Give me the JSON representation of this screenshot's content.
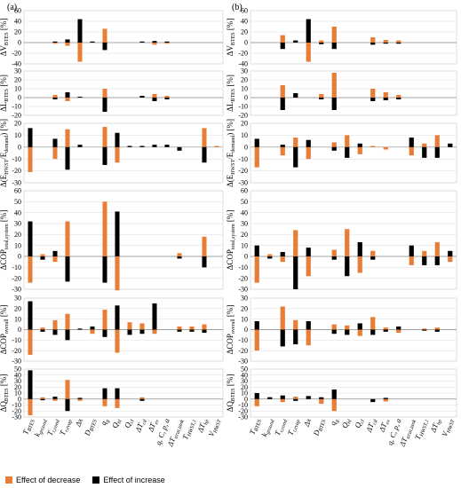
{
  "panel_labels": [
    "(a)",
    "(b)"
  ],
  "colors": {
    "decrease": "#E87D36",
    "increase": "#000000"
  },
  "legend": {
    "decrease": "Effect of decrease",
    "increase": "Effect of increase"
  },
  "chart_data": {
    "type": "bar",
    "categories": [
      "T_BTES",
      "k_ground",
      "T_r,cond",
      "T_r,evap",
      "Δx",
      "D_BTES",
      "q_g",
      "Q_hl",
      "Q_cl",
      "ΔT_cd",
      "ΔT_ev",
      "q, C, p, a",
      "ΔT_strat,tank",
      "T_HWST,1",
      "ΔT_hp",
      "V_HWST"
    ],
    "category_labels": [
      {
        "base": "T",
        "sub": "BTES"
      },
      {
        "base": "k",
        "sub": "ground"
      },
      {
        "base": "T",
        "sub": "r,cond"
      },
      {
        "base": "T",
        "sub": "r,evap"
      },
      {
        "base": "Δx",
        "sub": ""
      },
      {
        "base": "D",
        "sub": "BTES"
      },
      {
        "base": "q",
        "sub": "g"
      },
      {
        "base": "Q",
        "sub": "hl"
      },
      {
        "base": "Q",
        "sub": "cl"
      },
      {
        "base": "ΔT",
        "sub": "cd"
      },
      {
        "base": "ΔT",
        "sub": "ev"
      },
      {
        "base": "q, C, p, a",
        "sub": ""
      },
      {
        "base": "ΔT",
        "sub": "strat,tank"
      },
      {
        "base": "T",
        "sub": "HWST,1"
      },
      {
        "base": "ΔT",
        "sub": "hp"
      },
      {
        "base": "V",
        "sub": "HWST"
      }
    ],
    "series_names": [
      "Effect of decrease",
      "Effect of increase"
    ],
    "rows": [
      {
        "ylabel": {
          "base": "ΔV",
          "sub": "BTES"
        },
        "ylim": [
          -40,
          60
        ],
        "ticks": [
          -40,
          -20,
          0,
          20,
          40,
          60
        ],
        "tick_suffix": "",
        "a": {
          "decrease": [
            0,
            0,
            -2,
            -6,
            -36,
            0,
            26,
            0,
            0,
            0,
            -4,
            -2,
            0,
            0,
            0,
            0
          ],
          "increase": [
            0,
            0,
            2,
            6,
            44,
            2,
            -14,
            0,
            0,
            2,
            3,
            2,
            0,
            0,
            0,
            0
          ]
        },
        "b": {
          "decrease": [
            0,
            0,
            14,
            0,
            -36,
            4,
            30,
            0,
            0,
            10,
            5,
            4,
            0,
            0,
            0,
            0
          ],
          "increase": [
            0,
            0,
            -12,
            4,
            44,
            -3,
            -12,
            0,
            0,
            -4,
            -2,
            -2,
            0,
            0,
            0,
            0
          ]
        }
      },
      {
        "ylabel": {
          "base": "ΔL",
          "sub": "BTES"
        },
        "ylim": [
          -20,
          30
        ],
        "ticks": [
          -20,
          -10,
          0,
          10,
          20,
          30
        ],
        "tick_suffix": "",
        "a": {
          "decrease": [
            0,
            0,
            3,
            -4,
            0,
            0,
            10,
            0,
            0,
            1,
            4,
            2,
            0,
            0,
            0,
            0
          ],
          "increase": [
            0,
            0,
            -2,
            6,
            1,
            0,
            -16,
            0,
            0,
            2,
            -4,
            -2,
            0,
            0,
            0,
            0
          ]
        },
        "b": {
          "decrease": [
            0,
            0,
            14,
            0,
            0,
            4,
            28,
            0,
            0,
            10,
            6,
            3,
            0,
            0,
            0,
            0
          ],
          "increase": [
            0,
            0,
            -14,
            5,
            0,
            -2,
            -14,
            0,
            0,
            -4,
            -3,
            -2,
            0,
            0,
            0,
            0
          ]
        }
      },
      {
        "ylabel": {
          "base": "Δ(E",
          "sub": "HWST",
          "mid": "/E",
          "sub2": "demand",
          "tail": ")"
        },
        "ylim": [
          -30,
          20
        ],
        "ticks": [
          -30,
          -20,
          -10,
          0,
          10,
          20
        ],
        "tick_suffix": "",
        "a": {
          "decrease": [
            -21,
            0,
            -10,
            15,
            1,
            0,
            17,
            -13,
            1,
            1,
            1,
            2,
            0,
            0,
            16,
            1
          ],
          "increase": [
            16,
            0,
            7,
            -19,
            2,
            0,
            -15,
            12,
            1,
            1,
            2,
            2,
            -3,
            0,
            -13,
            0
          ]
        },
        "b": {
          "decrease": [
            -17,
            0,
            -7,
            8,
            -10,
            0,
            4,
            10,
            -6,
            1,
            -2,
            0,
            -7,
            3,
            10,
            2
          ],
          "increase": [
            7,
            0,
            2,
            -17,
            6,
            0,
            -3,
            -9,
            3,
            0,
            0,
            0,
            8,
            -9,
            -9,
            3
          ]
        }
      },
      {
        "ylabel": {
          "base": "ΔCOP",
          "sub": "total,system"
        },
        "ylim": [
          -30,
          60
        ],
        "ticks": [
          -30,
          -20,
          -10,
          0,
          10,
          20,
          30,
          40,
          50,
          60
        ],
        "tick_suffix": "",
        "a": {
          "decrease": [
            -24,
            2,
            -5,
            32,
            0,
            0,
            50,
            -31,
            0,
            0,
            0,
            0,
            3,
            0,
            18,
            0
          ],
          "increase": [
            32,
            -3,
            5,
            -23,
            0,
            0,
            -24,
            41,
            0,
            0,
            0,
            0,
            -2,
            0,
            -10,
            0
          ]
        },
        "b": {
          "decrease": [
            -24,
            2,
            -5,
            24,
            -18,
            0,
            6,
            25,
            -15,
            5,
            0,
            0,
            -8,
            5,
            13,
            -5
          ],
          "increase": [
            10,
            -2,
            4,
            -30,
            8,
            0,
            -3,
            -18,
            13,
            -3,
            0,
            0,
            10,
            -8,
            -8,
            5
          ]
        }
      },
      {
        "ylabel": {
          "base": "ΔCOP",
          "sub": "overall"
        },
        "ylim": [
          -30,
          30
        ],
        "ticks": [
          -30,
          -20,
          -10,
          0,
          10,
          20,
          30
        ],
        "tick_suffix": "",
        "a": {
          "decrease": [
            -24,
            2,
            9,
            15,
            1,
            -4,
            19,
            -22,
            7,
            6,
            -4,
            0,
            3,
            3,
            5,
            0
          ],
          "increase": [
            27,
            -2,
            -5,
            -10,
            1,
            3,
            -7,
            23,
            -5,
            -4,
            25,
            0,
            -2,
            -2,
            -3,
            0
          ]
        },
        "b": {
          "decrease": [
            -20,
            0,
            22,
            9,
            -15,
            0,
            5,
            4,
            -6,
            12,
            2,
            -3,
            0,
            1,
            2,
            0
          ],
          "increase": [
            8,
            0,
            -16,
            -14,
            8,
            0,
            -4,
            -5,
            6,
            -5,
            -2,
            3,
            0,
            -1,
            -2,
            0
          ]
        }
      },
      {
        "ylabel": {
          "base": "ΔQ",
          "sub": "BTES"
        },
        "ylim": [
          -30,
          50
        ],
        "ticks": [
          -30,
          -20,
          -10,
          0,
          10,
          20,
          30,
          40,
          50
        ],
        "tick_suffix": "",
        "a": {
          "decrease": [
            -27,
            3,
            -3,
            32,
            -3,
            0,
            -12,
            -15,
            0,
            3,
            0,
            0,
            0,
            0,
            0,
            0
          ],
          "increase": [
            48,
            -2,
            4,
            -20,
            2,
            0,
            18,
            18,
            0,
            -3,
            0,
            0,
            0,
            0,
            0,
            0
          ]
        },
        "b": {
          "decrease": [
            -12,
            3,
            -5,
            4,
            5,
            -8,
            -20,
            0,
            0,
            -4,
            -4,
            0,
            0,
            0,
            0,
            0
          ],
          "increase": [
            10,
            3,
            6,
            -3,
            5,
            3,
            16,
            0,
            0,
            -5,
            2,
            0,
            0,
            0,
            0,
            0
          ]
        }
      }
    ],
    "percent_unit": "[%]"
  }
}
